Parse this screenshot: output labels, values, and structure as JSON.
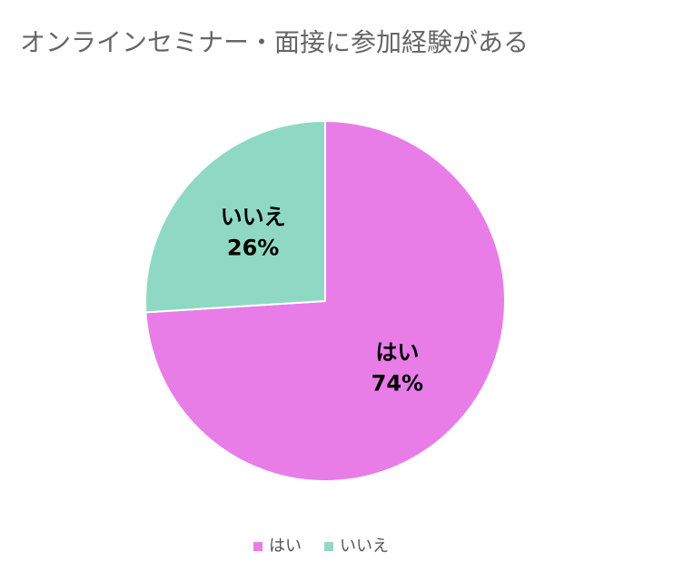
{
  "chart_data": {
    "type": "pie",
    "title": "オンラインセミナー・面接に参加経験がある",
    "categories": [
      "はい",
      "いいえ"
    ],
    "values": [
      74,
      26
    ],
    "value_labels": [
      "74%",
      "26%"
    ],
    "colors": [
      "#e87de8",
      "#8fd9c4"
    ],
    "legend": "bottom"
  }
}
